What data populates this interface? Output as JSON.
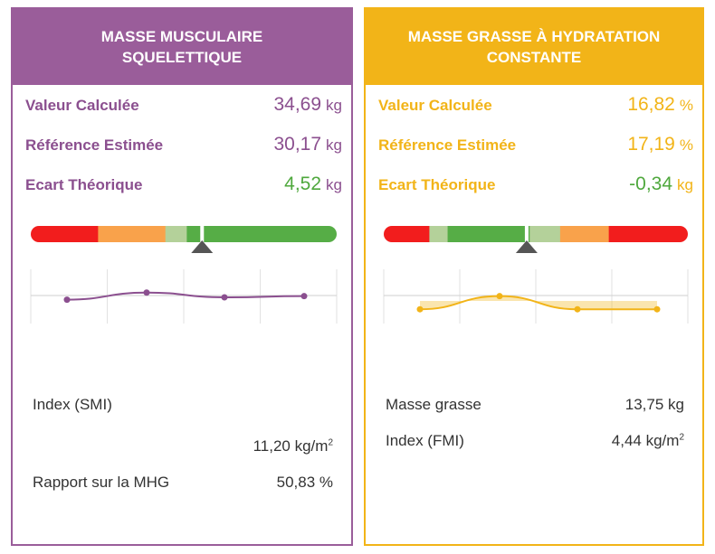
{
  "colors": {
    "purple": "#8b4f8f",
    "purple_header": "#9a5d9a",
    "yellow": "#f2b418",
    "green": "#4fa83d",
    "red": "#f21d1d",
    "orange": "#f9a24b",
    "light_green": "#b4d19a",
    "dark_green": "#56ad46",
    "marker": "#555555"
  },
  "left_panel": {
    "title": "MASSE MUSCULAIRE\nSQUELETTIQUE",
    "rows": [
      {
        "label": "Valeur Calculée",
        "value": "34,69",
        "unit": "kg"
      },
      {
        "label": "Référence Estimée",
        "value": "30,17",
        "unit": "kg"
      },
      {
        "label": "Ecart Théorique",
        "value": "4,52",
        "unit": "kg"
      }
    ],
    "gauge": {
      "segments": [
        {
          "color": "red",
          "fraction": 0.22
        },
        {
          "color": "orange",
          "fraction": 0.22
        },
        {
          "color": "light_green",
          "fraction": 0.07
        },
        {
          "color": "dark_green",
          "fraction": 0.49
        }
      ],
      "marker_position": 0.56
    },
    "trend_points": [
      0.46,
      0.58,
      0.5,
      0.52
    ],
    "stats": [
      {
        "label": "Index (SMI)",
        "value": ""
      },
      {
        "label": "",
        "value": "11,20 kg/m",
        "sup": "2"
      },
      {
        "label": "Rapport sur la MHG",
        "value": "50,83 %",
        "sup": ""
      }
    ]
  },
  "right_panel": {
    "title": "MASSE GRASSE À HYDRATATION\nCONSTANTE",
    "rows": [
      {
        "label": "Valeur Calculée",
        "value": "16,82",
        "unit": "%"
      },
      {
        "label": "Référence Estimée",
        "value": "17,19",
        "unit": "%"
      },
      {
        "label": "Ecart Théorique",
        "value": "-0,34",
        "unit": "kg"
      }
    ],
    "gauge": {
      "segments": [
        {
          "color": "red",
          "fraction": 0.15
        },
        {
          "color": "light_green",
          "fraction": 0.06
        },
        {
          "color": "dark_green",
          "fraction": 0.27
        },
        {
          "color": "light_green",
          "fraction": 0.1
        },
        {
          "color": "orange",
          "fraction": 0.16
        },
        {
          "color": "red",
          "fraction": 0.26
        }
      ],
      "marker_position": 0.47
    },
    "trend_points": [
      0.3,
      0.52,
      0.3,
      0.3
    ],
    "stats": [
      {
        "label": "Masse grasse",
        "value": "13,75 kg",
        "sup": ""
      },
      {
        "label": "Index (FMI)",
        "value": "4,44 kg/m",
        "sup": "2"
      }
    ]
  }
}
